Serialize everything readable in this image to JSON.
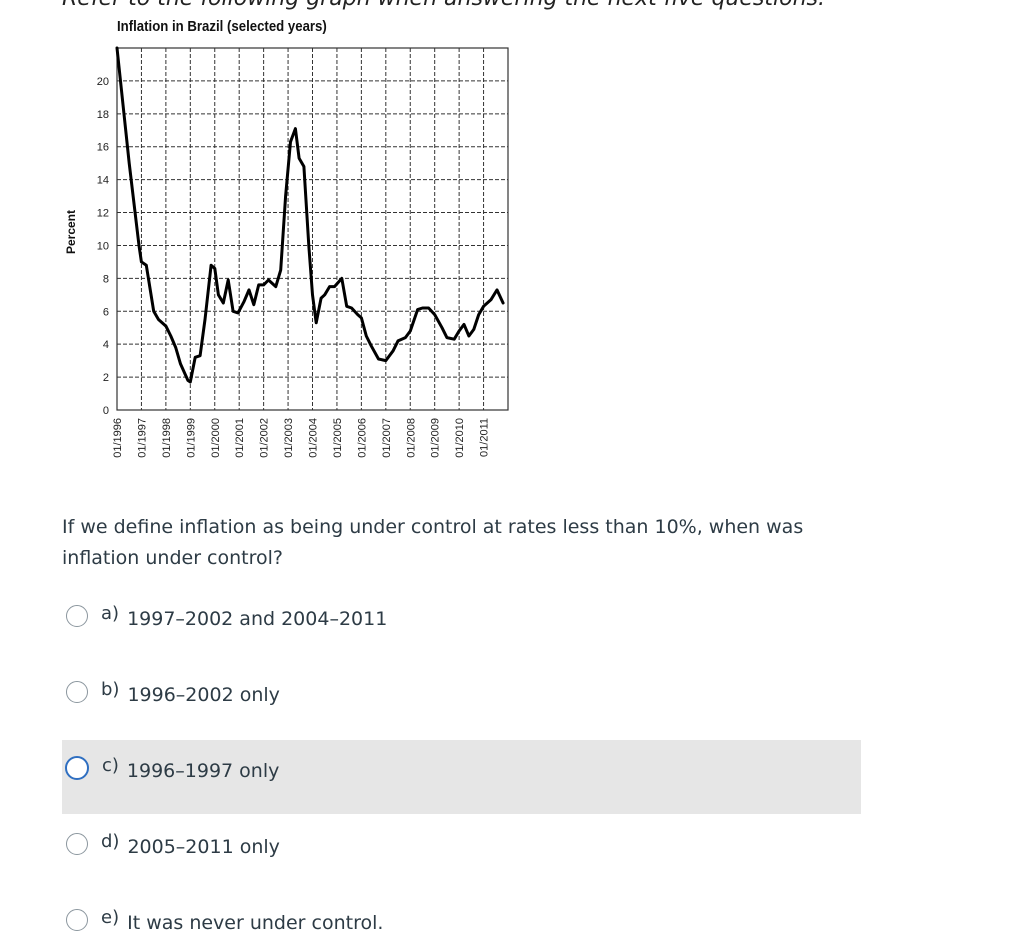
{
  "intro_text": "Refer to the following graph when answering the next five questions.",
  "chart_data": {
    "type": "line",
    "title": "Inflation in Brazil (selected years)",
    "xlabel": "",
    "ylabel": "Percent",
    "xlim": [
      1996,
      2012
    ],
    "ylim": [
      0,
      22
    ],
    "grid": true,
    "x_tick_labels": [
      "01/1996",
      "01/1997",
      "01/1998",
      "01/1999",
      "01/2000",
      "01/2001",
      "01/2002",
      "01/2003",
      "01/2004",
      "01/2005",
      "01/2006",
      "01/2007",
      "01/2008",
      "01/2009",
      "01/2010",
      "01/2011"
    ],
    "y_ticks": [
      0,
      2,
      4,
      6,
      8,
      10,
      12,
      14,
      16,
      18,
      20
    ],
    "series": [
      {
        "color": "#000000",
        "x": [
          1996.0,
          1996.5,
          1996.9,
          1997.0,
          1997.2,
          1997.5,
          1997.7,
          1998.0,
          1998.2,
          1998.4,
          1998.6,
          1998.9,
          1999.0,
          1999.2,
          1999.4,
          1999.6,
          1999.85,
          2000.0,
          2000.15,
          2000.35,
          2000.55,
          2000.75,
          2000.95,
          2001.2,
          2001.4,
          2001.6,
          2001.8,
          2002.0,
          2002.2,
          2002.5,
          2002.7,
          2002.9,
          2003.1,
          2003.3,
          2003.45,
          2003.65,
          2003.85,
          2004.0,
          2004.15,
          2004.35,
          2004.5,
          2004.7,
          2004.9,
          2005.2,
          2005.4,
          2005.6,
          2005.85,
          2006.0,
          2006.2,
          2006.4,
          2006.7,
          2007.0,
          2007.3,
          2007.5,
          2007.8,
          2008.0,
          2008.3,
          2008.5,
          2008.75,
          2009.0,
          2009.3,
          2009.5,
          2009.8,
          2010.0,
          2010.2,
          2010.4,
          2010.6,
          2010.8,
          2011.0,
          2011.3,
          2011.55,
          2011.8
        ],
        "y": [
          22,
          15,
          10,
          9,
          8.8,
          6,
          5.5,
          5.1,
          4.5,
          3.8,
          2.8,
          1.8,
          1.7,
          3.2,
          3.3,
          5.5,
          8.8,
          8.6,
          7,
          6.5,
          7.9,
          6,
          5.9,
          6.6,
          7.3,
          6.4,
          7.6,
          7.6,
          7.9,
          7.5,
          8.5,
          13,
          16.3,
          17.1,
          15.3,
          14.8,
          10,
          7,
          5.3,
          6.8,
          7,
          7.5,
          7.5,
          8,
          6.3,
          6.2,
          5.8,
          5.6,
          4.5,
          3.9,
          3.1,
          3.0,
          3.6,
          4.2,
          4.4,
          4.8,
          6.1,
          6.2,
          6.2,
          5.8,
          5.0,
          4.4,
          4.3,
          4.8,
          5.2,
          4.5,
          4.9,
          5.8,
          6.3,
          6.7,
          7.3,
          6.5
        ]
      }
    ]
  },
  "question": "If we define inflation as being under control at rates less than 10%, when was inflation under control?",
  "options": [
    {
      "letter": "a)",
      "text": "1997–2002 and 2004–2011"
    },
    {
      "letter": "b)",
      "text": "1996–2002 only"
    },
    {
      "letter": "c)",
      "text": "1996–1997 only"
    },
    {
      "letter": "d)",
      "text": "2005–2011 only"
    },
    {
      "letter": "e)",
      "text": "It was never under control."
    }
  ],
  "colors": {
    "highlight": "#e6e6e6",
    "focus": "#2f6fc1"
  }
}
